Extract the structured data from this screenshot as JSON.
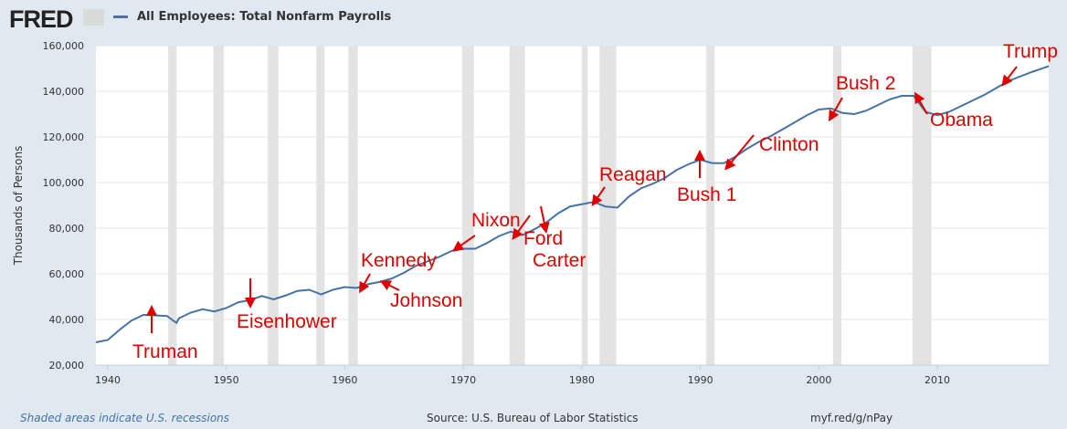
{
  "header": {
    "logo": "FRED",
    "series_title": "All Employees: Total Nonfarm Payrolls"
  },
  "footer": {
    "recession_note": "Shaded areas indicate U.S. recessions",
    "source": "Source: U.S. Bureau of Labor Statistics",
    "link": "myf.red/g/nPay"
  },
  "colors": {
    "line": "#4572a7",
    "annotation": "#e00000",
    "recession": "#e3e3e3"
  },
  "chart_data": {
    "type": "line",
    "title": "All Employees: Total Nonfarm Payrolls",
    "ylabel": "Thousands of Persons",
    "xlabel": "",
    "xlim": [
      1939,
      2019.4
    ],
    "ylim": [
      20000,
      160000
    ],
    "xticks": [
      1940,
      1950,
      1960,
      1970,
      1980,
      1990,
      2000,
      2010
    ],
    "yticks": [
      20000,
      40000,
      60000,
      80000,
      100000,
      120000,
      140000,
      160000
    ],
    "ytick_labels": [
      "20,000",
      "40,000",
      "60,000",
      "80,000",
      "100,000",
      "120,000",
      "140,000",
      "160,000"
    ],
    "recessions": [
      [
        1945.1,
        1945.8
      ],
      [
        1948.9,
        1949.8
      ],
      [
        1953.5,
        1954.4
      ],
      [
        1957.6,
        1958.3
      ],
      [
        1960.3,
        1961.1
      ],
      [
        1969.9,
        1970.9
      ],
      [
        1973.9,
        1975.2
      ],
      [
        1980.0,
        1980.5
      ],
      [
        1981.5,
        1982.9
      ],
      [
        1990.5,
        1991.2
      ],
      [
        2001.2,
        2001.9
      ],
      [
        2007.9,
        2009.5
      ]
    ],
    "series": [
      {
        "name": "All Employees: Total Nonfarm Payrolls",
        "x": [
          1939,
          1940,
          1941,
          1942,
          1943,
          1944,
          1945,
          1945.8,
          1946,
          1947,
          1948,
          1949,
          1950,
          1951,
          1952,
          1953,
          1954,
          1955,
          1956,
          1957,
          1958,
          1959,
          1960,
          1961,
          1962,
          1963,
          1964,
          1965,
          1966,
          1967,
          1968,
          1969,
          1970,
          1971,
          1972,
          1973,
          1974,
          1975,
          1976,
          1977,
          1978,
          1979,
          1980,
          1981,
          1982,
          1983,
          1984,
          1985,
          1986,
          1987,
          1988,
          1989,
          1990,
          1991,
          1992,
          1993,
          1994,
          1995,
          1996,
          1997,
          1998,
          1999,
          2000,
          2001,
          2002,
          2003,
          2004,
          2005,
          2006,
          2007,
          2008,
          2009,
          2010,
          2011,
          2012,
          2013,
          2014,
          2015,
          2016,
          2017,
          2018,
          2019.4
        ],
        "values": [
          30000,
          31000,
          35500,
          39500,
          42000,
          41800,
          41500,
          38500,
          40500,
          43000,
          44500,
          43500,
          45000,
          47500,
          48500,
          50300,
          48800,
          50500,
          52500,
          53000,
          51000,
          53000,
          54200,
          53800,
          55500,
          56500,
          58000,
          60500,
          63500,
          65500,
          67500,
          70000,
          71000,
          71000,
          73500,
          76500,
          78500,
          77000,
          79500,
          82500,
          86500,
          89500,
          90500,
          91500,
          89500,
          89000,
          94000,
          97500,
          99500,
          102000,
          105500,
          108000,
          110000,
          108500,
          108500,
          111500,
          115000,
          118000,
          120500,
          123500,
          126500,
          129500,
          132000,
          132500,
          130500,
          130000,
          131500,
          134000,
          136500,
          138000,
          138000,
          131000,
          129500,
          131000,
          133500,
          136000,
          138500,
          141500,
          144500,
          146500,
          148500,
          151000
        ]
      }
    ],
    "annotations": [
      "Truman",
      "Eisenhower",
      "Kennedy",
      "Johnson",
      "Nixon",
      "Ford",
      "Carter",
      "Reagan",
      "Bush 1",
      "Clinton",
      "Bush 2",
      "Obama",
      "Trump"
    ]
  }
}
